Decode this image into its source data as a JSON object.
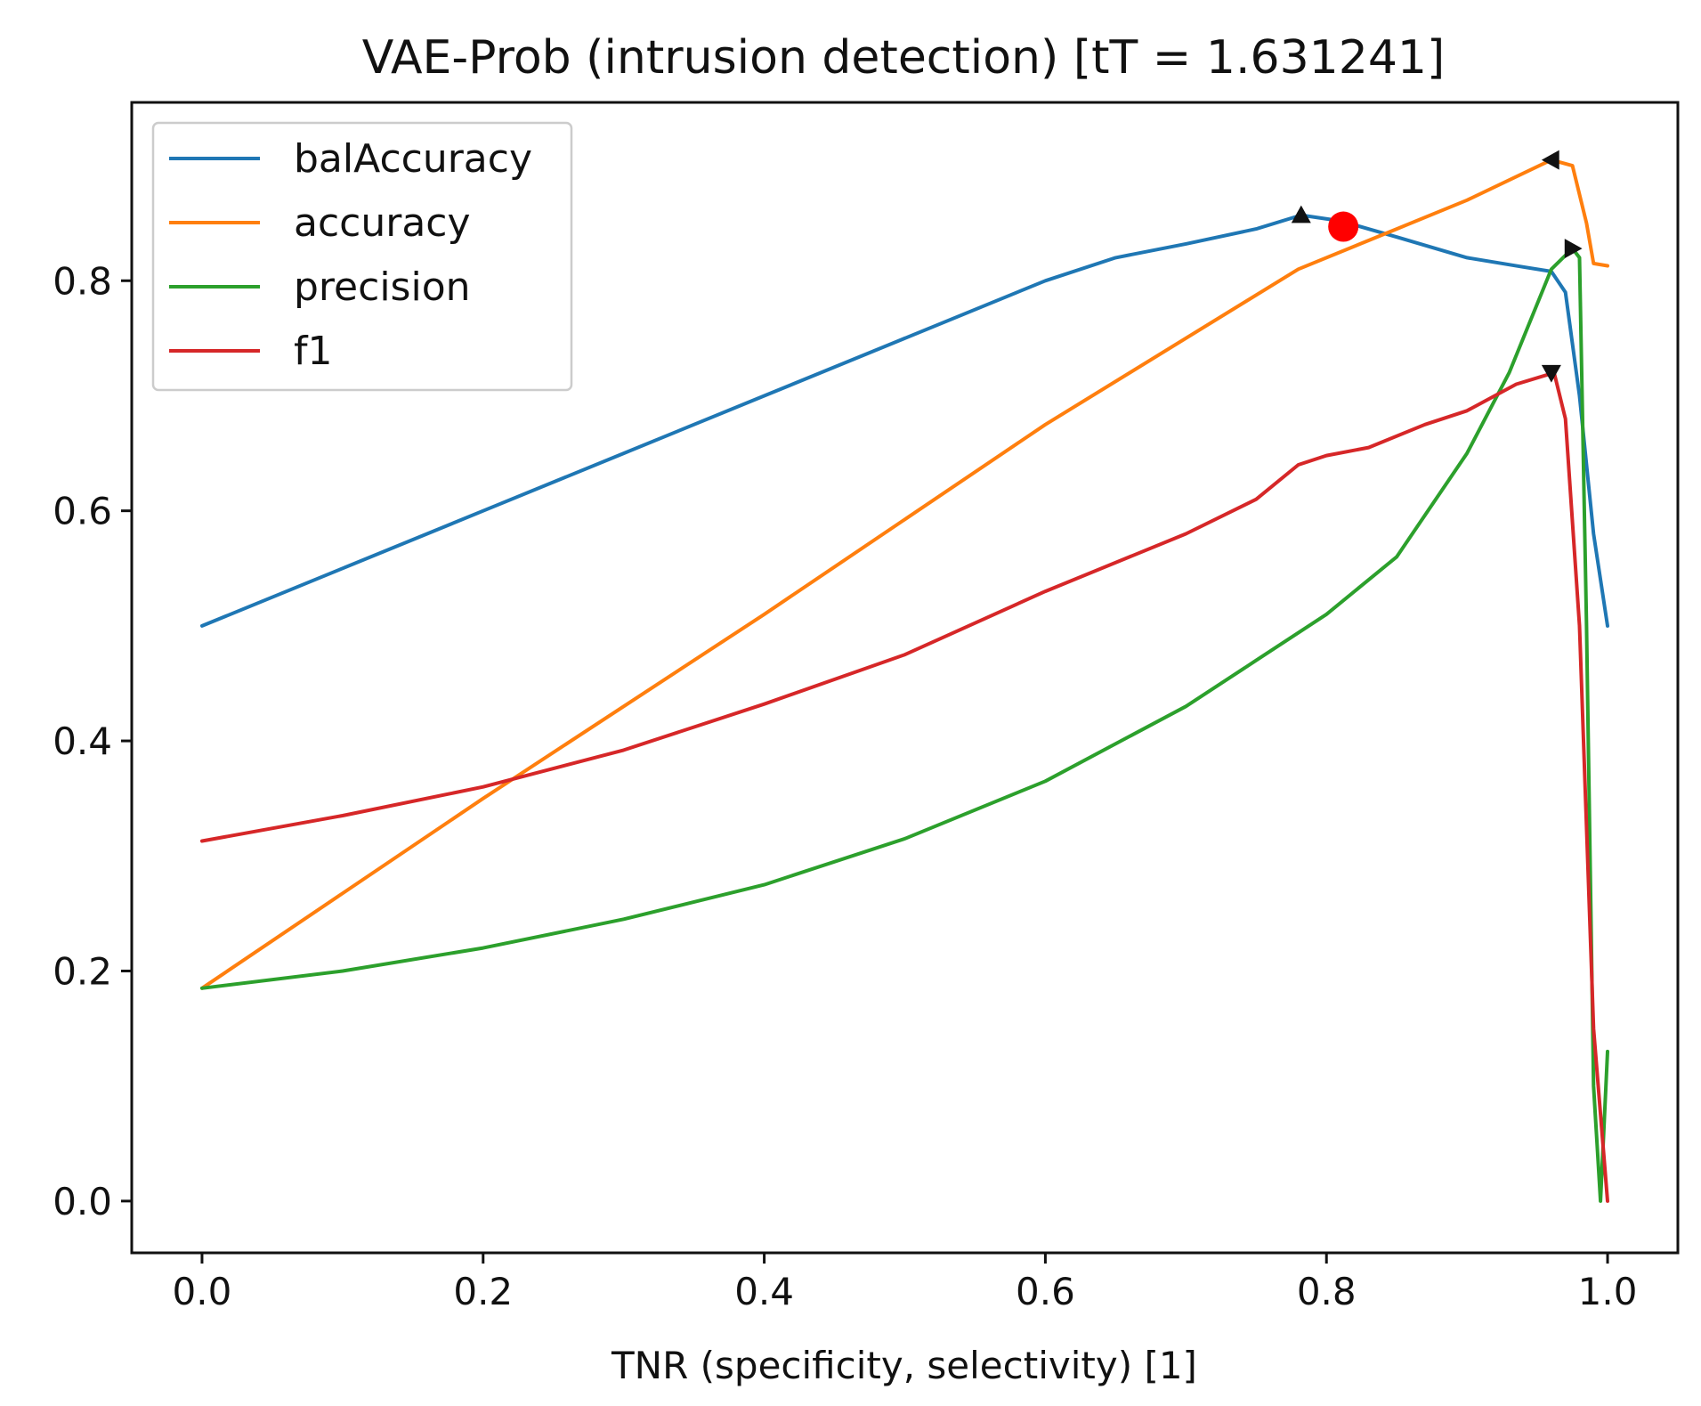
{
  "chart_data": {
    "type": "line",
    "title": "VAE-Prob (intrusion detection) [tT = 1.631241]",
    "xlabel": "TNR (specificity, selectivity) [1]",
    "ylabel": "",
    "xlim": [
      -0.05,
      1.05
    ],
    "ylim": [
      -0.045,
      0.955
    ],
    "xticks": [
      0.0,
      0.2,
      0.4,
      0.6,
      0.8,
      1.0
    ],
    "xtick_labels": [
      "0.0",
      "0.2",
      "0.4",
      "0.6",
      "0.8",
      "1.0"
    ],
    "yticks": [
      0.0,
      0.2,
      0.4,
      0.6,
      0.8
    ],
    "ytick_labels": [
      "0.0",
      "0.2",
      "0.4",
      "0.6",
      "0.8"
    ],
    "grid": false,
    "legend_position": "top-left",
    "series": [
      {
        "name": "balAccuracy",
        "color": "#1f77b4",
        "points": [
          [
            0.0,
            0.5
          ],
          [
            0.1,
            0.55
          ],
          [
            0.2,
            0.6
          ],
          [
            0.3,
            0.65
          ],
          [
            0.4,
            0.7
          ],
          [
            0.5,
            0.75
          ],
          [
            0.6,
            0.8
          ],
          [
            0.65,
            0.82
          ],
          [
            0.7,
            0.832
          ],
          [
            0.75,
            0.845
          ],
          [
            0.782,
            0.857
          ],
          [
            0.81,
            0.852
          ],
          [
            0.85,
            0.838
          ],
          [
            0.9,
            0.82
          ],
          [
            0.94,
            0.812
          ],
          [
            0.96,
            0.808
          ],
          [
            0.97,
            0.79
          ],
          [
            0.98,
            0.7
          ],
          [
            0.99,
            0.58
          ],
          [
            1.0,
            0.5
          ]
        ]
      },
      {
        "name": "accuracy",
        "color": "#ff7f0e",
        "points": [
          [
            0.0,
            0.185
          ],
          [
            0.2,
            0.35
          ],
          [
            0.4,
            0.51
          ],
          [
            0.6,
            0.675
          ],
          [
            0.78,
            0.81
          ],
          [
            0.85,
            0.845
          ],
          [
            0.9,
            0.87
          ],
          [
            0.96,
            0.905
          ],
          [
            0.975,
            0.9
          ],
          [
            0.985,
            0.85
          ],
          [
            0.99,
            0.815
          ],
          [
            1.0,
            0.813
          ]
        ]
      },
      {
        "name": "precision",
        "color": "#2ca02c",
        "points": [
          [
            0.0,
            0.185
          ],
          [
            0.1,
            0.2
          ],
          [
            0.2,
            0.22
          ],
          [
            0.3,
            0.245
          ],
          [
            0.4,
            0.275
          ],
          [
            0.5,
            0.315
          ],
          [
            0.6,
            0.365
          ],
          [
            0.7,
            0.43
          ],
          [
            0.75,
            0.47
          ],
          [
            0.8,
            0.51
          ],
          [
            0.85,
            0.56
          ],
          [
            0.9,
            0.65
          ],
          [
            0.93,
            0.72
          ],
          [
            0.96,
            0.81
          ],
          [
            0.975,
            0.828
          ],
          [
            0.98,
            0.82
          ],
          [
            0.985,
            0.5
          ],
          [
            0.99,
            0.1
          ],
          [
            0.995,
            0.0
          ],
          [
            1.0,
            0.13
          ]
        ]
      },
      {
        "name": "f1",
        "color": "#d62728",
        "points": [
          [
            0.0,
            0.313
          ],
          [
            0.1,
            0.335
          ],
          [
            0.2,
            0.36
          ],
          [
            0.3,
            0.392
          ],
          [
            0.4,
            0.432
          ],
          [
            0.5,
            0.475
          ],
          [
            0.6,
            0.53
          ],
          [
            0.7,
            0.58
          ],
          [
            0.75,
            0.61
          ],
          [
            0.78,
            0.64
          ],
          [
            0.8,
            0.648
          ],
          [
            0.83,
            0.655
          ],
          [
            0.87,
            0.675
          ],
          [
            0.9,
            0.687
          ],
          [
            0.935,
            0.71
          ],
          [
            0.962,
            0.72
          ],
          [
            0.97,
            0.68
          ],
          [
            0.98,
            0.5
          ],
          [
            0.99,
            0.15
          ],
          [
            1.0,
            0.0
          ]
        ]
      }
    ],
    "markers": [
      {
        "name": "balAccuracy-max",
        "shape": "triangle-up",
        "x": 0.782,
        "y": 0.857,
        "color": "#111111"
      },
      {
        "name": "accuracy-max",
        "shape": "triangle-left",
        "x": 0.96,
        "y": 0.905,
        "color": "#111111"
      },
      {
        "name": "precision-max",
        "shape": "triangle-right",
        "x": 0.975,
        "y": 0.828,
        "color": "#111111"
      },
      {
        "name": "f1-max",
        "shape": "triangle-down",
        "x": 0.96,
        "y": 0.72,
        "color": "#111111"
      },
      {
        "name": "selected-threshold",
        "shape": "circle",
        "x": 0.812,
        "y": 0.847,
        "color": "#ff0000"
      }
    ]
  }
}
